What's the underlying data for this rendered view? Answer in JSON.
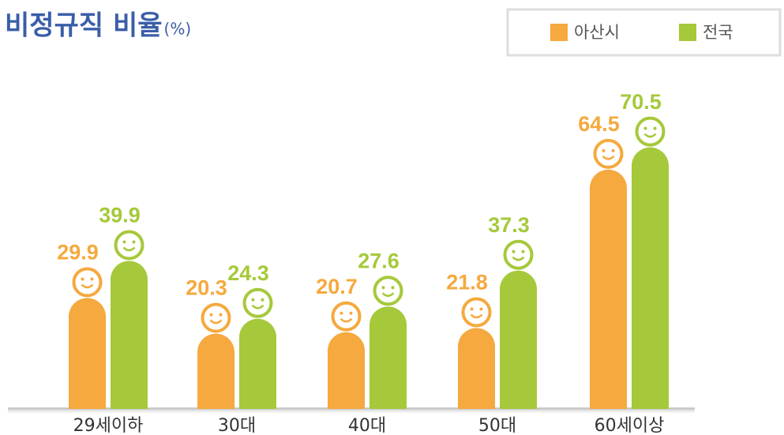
{
  "chart_data": {
    "type": "bar",
    "title": "비정규직 비율",
    "unit": "(%)",
    "categories": [
      "29세이하",
      "30대",
      "40대",
      "50대",
      "60세이상"
    ],
    "series": [
      {
        "name": "아산시",
        "color": "#f5a93e",
        "values": [
          29.9,
          20.3,
          20.7,
          21.8,
          64.5
        ]
      },
      {
        "name": "전국",
        "color": "#a5c93a",
        "values": [
          39.9,
          24.3,
          27.6,
          37.3,
          70.5
        ]
      }
    ],
    "legend": "top-right"
  }
}
